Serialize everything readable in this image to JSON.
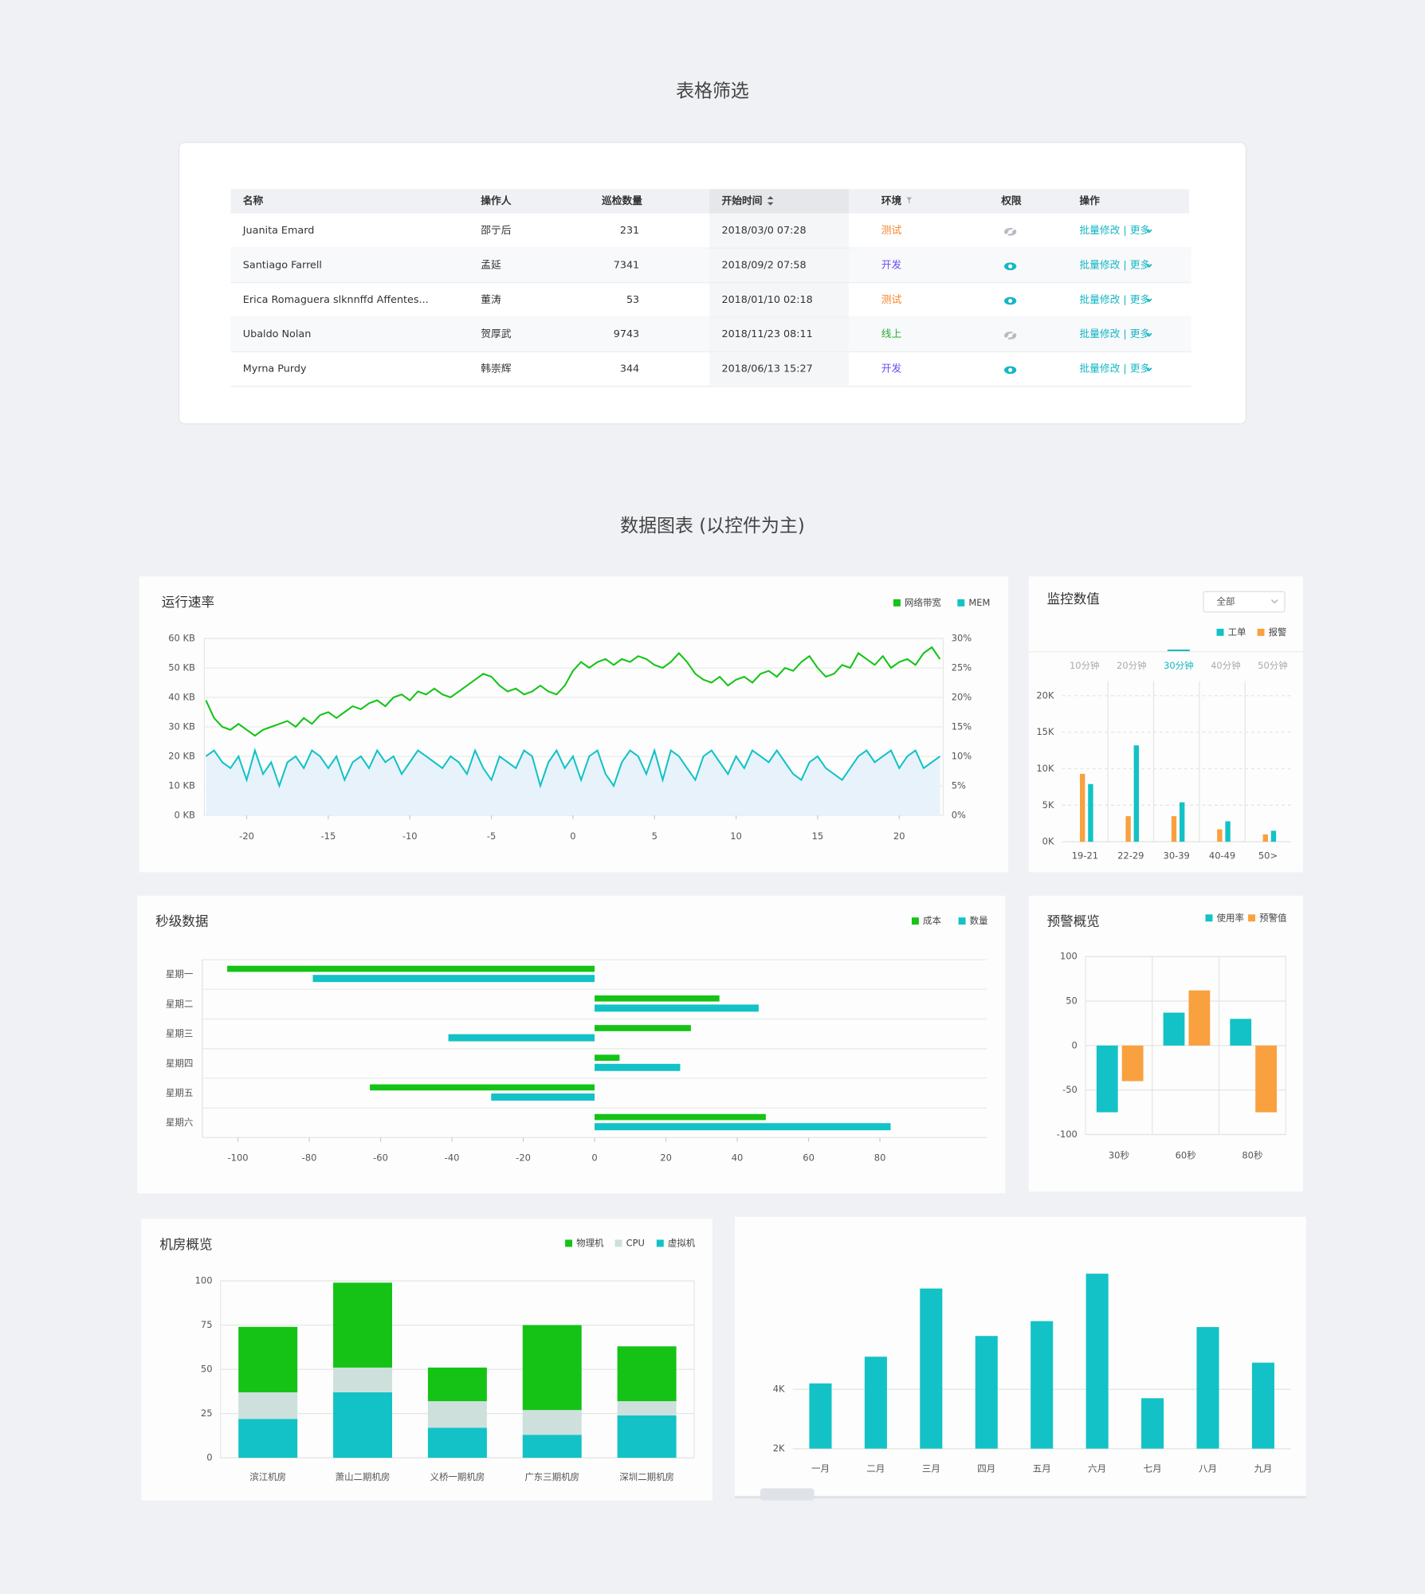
{
  "page_titles": [
    "表格筛选",
    "数据图表 (以控件为主)"
  ],
  "table": {
    "columns": [
      "名称",
      "操作人",
      "巡检数量",
      "开始时间",
      "环境",
      "权限",
      "操作"
    ],
    "rows": [
      {
        "cells": [
          "Juanita Emard",
          "邵亍后",
          231,
          "2018/03/0  07:28",
          "测试",
          "批量修改 | 更多"
        ],
        "env_color": "#f5822a",
        "visible": false
      },
      {
        "cells": [
          "Santiago Farrell",
          "孟延",
          7341,
          "2018/09/2  07:58",
          "开发",
          "批量修改 | 更多"
        ],
        "env_color": "#6b4ef0",
        "visible": true
      },
      {
        "cells": [
          "Erica Romaguera slknnffd Affentes...",
          "董涛",
          53,
          "2018/01/10  02:18",
          "测试",
          "批量修改 | 更多"
        ],
        "env_color": "#f5822a",
        "visible": true
      },
      {
        "cells": [
          "Ubaldo Nolan",
          "贺厚武",
          9743,
          "2018/11/23  08:11",
          "线上",
          "批量修改 | 更多"
        ],
        "env_color": "#25b02d",
        "visible": false
      },
      {
        "cells": [
          "Myrna Purdy",
          "韩崇辉",
          344,
          "2018/06/13  15:27",
          "开发",
          "批量修改 | 更多"
        ],
        "env_color": "#6b4ef0",
        "visible": true
      }
    ]
  },
  "chart_data": [
    {
      "type": "line",
      "title": "运行速率",
      "grid": true,
      "x": [
        -22.5,
        -22,
        -21.5,
        -21,
        -20.5,
        -20,
        -19.5,
        -19,
        -18.5,
        -18,
        -17.5,
        -17,
        -16.5,
        -16,
        -15.5,
        -15,
        -14.5,
        -14,
        -13.5,
        -13,
        -12.5,
        -12,
        -11.5,
        -11,
        -10.5,
        -10,
        -9.5,
        -9,
        -8.5,
        -8,
        -7.5,
        -7,
        -6.5,
        -6,
        -5.5,
        -5,
        -4.5,
        -4,
        -3.5,
        -3,
        -2.5,
        -2,
        -1.5,
        -1,
        -0.5,
        0,
        0.5,
        1,
        1.5,
        2,
        2.5,
        3,
        3.5,
        4,
        4.5,
        5,
        5.5,
        6,
        6.5,
        7,
        7.5,
        8,
        8.5,
        9,
        9.5,
        10,
        10.5,
        11,
        11.5,
        12,
        12.5,
        13,
        13.5,
        14,
        14.5,
        15,
        15.5,
        16,
        16.5,
        17,
        17.5,
        18,
        18.5,
        19,
        19.5,
        20,
        20.5,
        21,
        21.5,
        22,
        22.5
      ],
      "xlim": [
        -22.6,
        22.7
      ],
      "xticks": [
        -20,
        -15,
        -10,
        -5,
        0,
        5,
        10,
        15,
        20
      ],
      "ylim": [
        0,
        60
      ],
      "yticks": [
        {
          "value": 0,
          "label": "0 KB"
        },
        {
          "value": 10,
          "label": "10 KB"
        },
        {
          "value": 20,
          "label": "20 KB"
        },
        {
          "value": 30,
          "label": "30 KB"
        },
        {
          "value": 40,
          "label": "40 KB"
        },
        {
          "value": 50,
          "label": "50 KB"
        },
        {
          "value": 60,
          "label": "60 KB"
        }
      ],
      "y2lim": [
        0,
        30
      ],
      "y2ticks": [
        {
          "value": 0,
          "label": "0%"
        },
        {
          "value": 5,
          "label": "5%"
        },
        {
          "value": 10,
          "label": "10%"
        },
        {
          "value": 15,
          "label": "15%"
        },
        {
          "value": 20,
          "label": "20%"
        },
        {
          "value": 25,
          "label": "25%"
        },
        {
          "value": 30,
          "label": "30%"
        }
      ],
      "series": [
        {
          "name": "网络带宽",
          "color": "#14c316",
          "values": [
            39,
            33,
            30,
            29,
            31,
            29,
            27,
            29,
            30,
            31,
            32,
            30,
            33,
            31,
            34,
            35,
            33,
            35,
            37,
            36,
            38,
            39,
            37,
            40,
            41,
            39,
            42,
            41,
            43,
            41,
            40,
            42,
            44,
            46,
            48,
            47,
            44,
            42,
            43,
            41,
            42,
            44,
            42,
            41,
            44,
            49,
            52,
            50,
            52,
            53,
            51,
            53,
            52,
            54,
            53,
            51,
            50,
            52,
            55,
            52,
            48,
            46,
            45,
            47,
            44,
            46,
            47,
            45,
            48,
            49,
            47,
            50,
            49,
            52,
            54,
            50,
            47,
            48,
            51,
            50,
            55,
            53,
            51,
            54,
            50,
            52,
            53,
            51,
            55,
            57,
            53
          ]
        },
        {
          "name": "MEM",
          "color": "#12c2c6",
          "axis": "y2",
          "values": [
            10,
            11,
            9,
            8,
            10,
            6,
            11,
            7,
            9,
            5,
            9,
            10,
            8,
            11,
            10,
            8,
            10,
            6,
            9,
            10,
            8,
            11,
            9,
            10,
            7,
            9,
            11,
            10,
            9,
            8,
            10,
            9,
            7,
            11,
            8,
            6,
            10,
            9,
            8,
            11,
            10,
            5,
            9,
            11,
            8,
            10,
            6,
            10,
            11,
            7,
            5,
            9,
            11,
            10,
            7,
            11,
            6,
            11,
            10,
            8,
            6,
            10,
            11,
            9,
            7,
            10,
            8,
            11,
            10,
            9,
            11,
            9,
            7,
            6,
            9,
            10,
            8,
            7,
            6,
            8,
            10,
            11,
            9,
            10,
            11,
            8,
            10,
            11,
            8,
            9,
            10
          ]
        }
      ]
    },
    {
      "type": "grouped_bar",
      "title": "监控数值",
      "filter": "全部",
      "tabs": [
        "10分钟",
        "20分钟",
        "30分钟",
        "40分钟",
        "50分钟"
      ],
      "active_tab": 2,
      "grid": true,
      "categories": [
        "19-21",
        "22-29",
        "30-39",
        "40-49",
        "50>"
      ],
      "ylim": [
        0,
        22000
      ],
      "yticks": [
        {
          "value": 0,
          "label": "0K"
        },
        {
          "value": 5000,
          "label": "5K"
        },
        {
          "value": 10000,
          "label": "10K"
        },
        {
          "value": 15000,
          "label": "15K"
        },
        {
          "value": 20000,
          "label": "20K"
        }
      ],
      "series": [
        {
          "name": "工单",
          "color": "#12c2c6",
          "values": [
            7900,
            13200,
            5400,
            2800,
            1500
          ]
        },
        {
          "name": "报警",
          "color": "#f9a03f",
          "values": [
            9300,
            3500,
            3500,
            1700,
            1000
          ]
        }
      ]
    },
    {
      "type": "hbar",
      "title": "秒级数据",
      "categories": [
        "星期一",
        "星期二",
        "星期三",
        "星期四",
        "星期五",
        "星期六"
      ],
      "xlim": [
        -110,
        110
      ],
      "xticks": [
        -100,
        -80,
        -60,
        -40,
        -20,
        0,
        20,
        40,
        60,
        80
      ],
      "series": [
        {
          "name": "成本",
          "color": "#14c316",
          "values": [
            -103,
            35,
            27,
            7,
            -63,
            48
          ]
        },
        {
          "name": "数量",
          "color": "#12c2c6",
          "values": [
            -79,
            46,
            -41,
            24,
            -29,
            83
          ]
        }
      ]
    },
    {
      "type": "grouped_bar",
      "title": "预警概览",
      "grid": true,
      "categories": [
        "30秒",
        "60秒",
        "80秒"
      ],
      "ylim": [
        -100,
        100
      ],
      "yticks": [
        -100,
        -50,
        0,
        50,
        100
      ],
      "series": [
        {
          "name": "使用率",
          "color": "#12c2c6",
          "values": [
            -75,
            37,
            30
          ]
        },
        {
          "name": "预警值",
          "color": "#f9a03f",
          "values": [
            -40,
            62,
            -75
          ]
        }
      ]
    },
    {
      "type": "stacked_bar",
      "title": "机房概览",
      "grid": true,
      "categories": [
        "滨江机房",
        "萧山二期机房",
        "义桥一期机房",
        "广东三期机房",
        "深圳二期机房"
      ],
      "ylim": [
        0,
        100
      ],
      "yticks": [
        0,
        25,
        50,
        75,
        100
      ],
      "series": [
        {
          "name": "物理机",
          "color": "#14c316",
          "values": [
            37,
            48,
            19,
            48,
            31
          ]
        },
        {
          "name": "CPU",
          "color": "#cde0dc",
          "values": [
            15,
            14,
            15,
            14,
            8
          ]
        },
        {
          "name": "虚拟机",
          "color": "#12c2c6",
          "values": [
            22,
            37,
            17,
            13,
            24
          ]
        }
      ]
    },
    {
      "type": "grouped_bar",
      "grid": true,
      "categories": [
        "一月",
        "二月",
        "三月",
        "四月",
        "五月",
        "六月",
        "七月",
        "八月",
        "九月"
      ],
      "ylim": [
        2000,
        8000
      ],
      "yticks": [
        {
          "value": 2000,
          "label": "2K"
        },
        {
          "value": 4000,
          "label": "4K"
        }
      ],
      "series": [
        {
          "color": "#12c2c6",
          "values": [
            4200,
            5100,
            7400,
            5800,
            6300,
            7900,
            3700,
            6100,
            4900
          ]
        }
      ]
    }
  ]
}
